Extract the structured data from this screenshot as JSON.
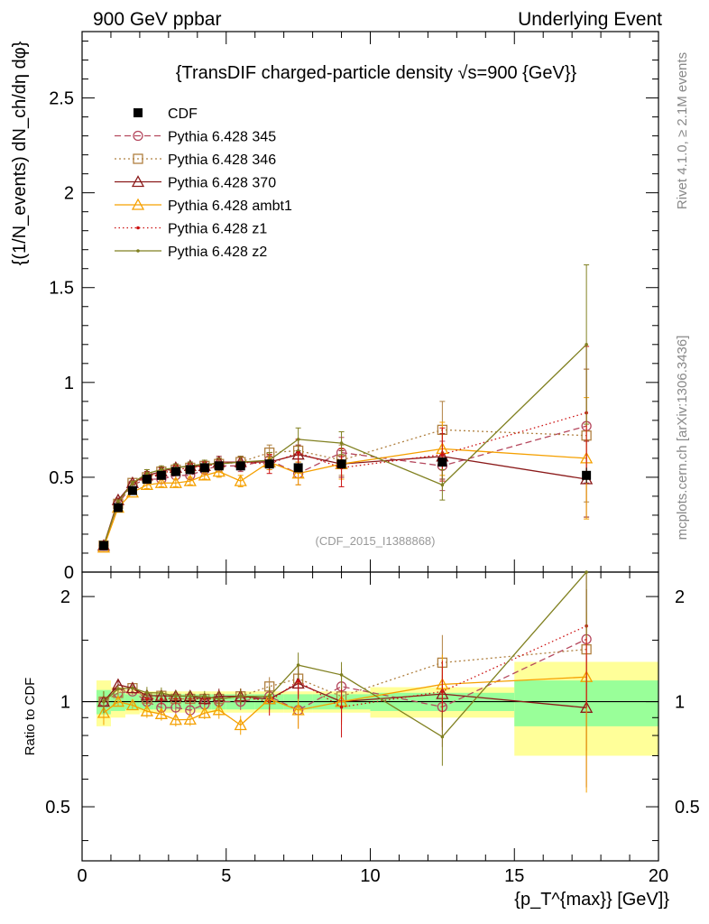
{
  "header": {
    "left": "900 GeV ppbar",
    "right": "Underlying Event"
  },
  "side_labels": {
    "rivet": "Rivet 4.1.0, ≥ 2.1M events",
    "mcplots": "mcplots.cern.ch [arXiv:1306.3436]"
  },
  "chart_data": {
    "type": "line",
    "title": "{TransDIF charged-particle density √s=900 {GeV}}",
    "analysis_tag": "(CDF_2015_I1388868)",
    "ylabel_main": "{(1/N_events) dN_ch/dη dφ}",
    "ylabel_ratio": "Ratio to CDF",
    "xlabel": "{p_T^{max}} [GeV]}",
    "xlim": [
      0,
      20
    ],
    "ylim_main": [
      0,
      2.85
    ],
    "ylim_ratio": [
      0.35,
      2.35
    ],
    "x_ticks": [
      "0",
      "5",
      "10",
      "15",
      "20"
    ],
    "y_ticks_main": [
      "0.5",
      "1",
      "1.5",
      "2",
      "2.5"
    ],
    "y_ticks_ratio": [
      "0.5",
      "1",
      "2"
    ],
    "bins": [
      {
        "x": 0.75,
        "lo": 0.5,
        "hi": 1.0
      },
      {
        "x": 1.25,
        "lo": 1.0,
        "hi": 1.5
      },
      {
        "x": 1.75,
        "lo": 1.5,
        "hi": 2.0
      },
      {
        "x": 2.25,
        "lo": 2.0,
        "hi": 2.5
      },
      {
        "x": 2.75,
        "lo": 2.5,
        "hi": 3.0
      },
      {
        "x": 3.25,
        "lo": 3.0,
        "hi": 3.5
      },
      {
        "x": 3.75,
        "lo": 3.5,
        "hi": 4.0
      },
      {
        "x": 4.25,
        "lo": 4.0,
        "hi": 4.5
      },
      {
        "x": 4.75,
        "lo": 4.5,
        "hi": 5.0
      },
      {
        "x": 5.5,
        "lo": 5.0,
        "hi": 6.0
      },
      {
        "x": 6.5,
        "lo": 6.0,
        "hi": 7.0
      },
      {
        "x": 7.5,
        "lo": 7.0,
        "hi": 8.0
      },
      {
        "x": 9.0,
        "lo": 8.0,
        "hi": 10.0
      },
      {
        "x": 12.5,
        "lo": 10.0,
        "hi": 15.0
      },
      {
        "x": 17.5,
        "lo": 15.0,
        "hi": 20.0
      }
    ],
    "band_stat": [
      0.08,
      0.06,
      0.05,
      0.05,
      0.05,
      0.05,
      0.05,
      0.05,
      0.05,
      0.05,
      0.05,
      0.05,
      0.05,
      0.06,
      0.15
    ],
    "band_total": [
      0.15,
      0.1,
      0.08,
      0.07,
      0.07,
      0.07,
      0.07,
      0.07,
      0.07,
      0.07,
      0.07,
      0.07,
      0.07,
      0.1,
      0.3
    ],
    "cdf": {
      "name": "CDF",
      "values": [
        0.14,
        0.34,
        0.43,
        0.49,
        0.51,
        0.53,
        0.54,
        0.55,
        0.56,
        0.56,
        0.57,
        0.55,
        0.57,
        0.58,
        0.51
      ],
      "errors": [
        0.01,
        0.01,
        0.01,
        0.01,
        0.01,
        0.01,
        0.01,
        0.01,
        0.01,
        0.01,
        0.01,
        0.01,
        0.01,
        0.02,
        0.04
      ]
    },
    "series": [
      {
        "name": "Pythia 6.428 345",
        "color": "#b5485e",
        "dash": "7,4",
        "marker": "circle",
        "values": [
          0.14,
          0.36,
          0.46,
          0.49,
          0.49,
          0.51,
          0.51,
          0.54,
          0.56,
          0.56,
          0.59,
          0.52,
          0.63,
          0.56,
          0.77
        ],
        "errors": [
          0.01,
          0.01,
          0.01,
          0.02,
          0.02,
          0.02,
          0.02,
          0.02,
          0.03,
          0.03,
          0.04,
          0.06,
          0.08,
          0.13,
          0.3
        ]
      },
      {
        "name": "Pythia 6.428 346",
        "color": "#b08040",
        "dash": "2,3",
        "marker": "square",
        "values": [
          0.14,
          0.36,
          0.47,
          0.5,
          0.53,
          0.54,
          0.55,
          0.56,
          0.57,
          0.58,
          0.63,
          0.64,
          0.59,
          0.75,
          0.72
        ],
        "errors": [
          0.01,
          0.01,
          0.01,
          0.02,
          0.02,
          0.02,
          0.02,
          0.02,
          0.03,
          0.03,
          0.04,
          0.06,
          0.08,
          0.15,
          0.35
        ]
      },
      {
        "name": "Pythia 6.428 370",
        "color": "#8b1a1a",
        "dash": "",
        "marker": "triangle",
        "values": [
          0.14,
          0.38,
          0.47,
          0.51,
          0.53,
          0.55,
          0.56,
          0.56,
          0.58,
          0.58,
          0.58,
          0.62,
          0.57,
          0.61,
          0.49
        ],
        "errors": [
          0.01,
          0.01,
          0.01,
          0.02,
          0.02,
          0.02,
          0.02,
          0.02,
          0.03,
          0.03,
          0.04,
          0.05,
          0.07,
          0.12,
          0.2
        ]
      },
      {
        "name": "Pythia 6.428 ambt1",
        "color": "#f5a000",
        "dash": "",
        "marker": "triangle",
        "values": [
          0.13,
          0.34,
          0.42,
          0.46,
          0.47,
          0.47,
          0.48,
          0.51,
          0.53,
          0.48,
          0.58,
          0.52,
          0.57,
          0.65,
          0.6
        ],
        "errors": [
          0.01,
          0.01,
          0.01,
          0.02,
          0.02,
          0.02,
          0.02,
          0.02,
          0.03,
          0.03,
          0.04,
          0.06,
          0.08,
          0.14,
          0.32
        ]
      },
      {
        "name": "Pythia 6.428 z1",
        "color": "#cc1111",
        "dash": "1.5,3",
        "marker": "dot",
        "values": [
          0.14,
          0.37,
          0.47,
          0.5,
          0.52,
          0.54,
          0.55,
          0.56,
          0.57,
          0.58,
          0.57,
          0.63,
          0.55,
          0.62,
          0.84
        ],
        "errors": [
          0.01,
          0.01,
          0.01,
          0.02,
          0.02,
          0.02,
          0.02,
          0.02,
          0.03,
          0.03,
          0.05,
          0.07,
          0.1,
          0.14,
          0.35
        ]
      },
      {
        "name": "Pythia 6.428 z2",
        "color": "#808020",
        "dash": "",
        "marker": "dot",
        "values": [
          0.14,
          0.37,
          0.47,
          0.52,
          0.54,
          0.55,
          0.56,
          0.57,
          0.57,
          0.58,
          0.59,
          0.7,
          0.68,
          0.46,
          1.2
        ],
        "errors": [
          0.01,
          0.01,
          0.01,
          0.02,
          0.02,
          0.02,
          0.02,
          0.02,
          0.03,
          0.03,
          0.04,
          0.06,
          0.06,
          0.08,
          0.42
        ]
      }
    ]
  }
}
